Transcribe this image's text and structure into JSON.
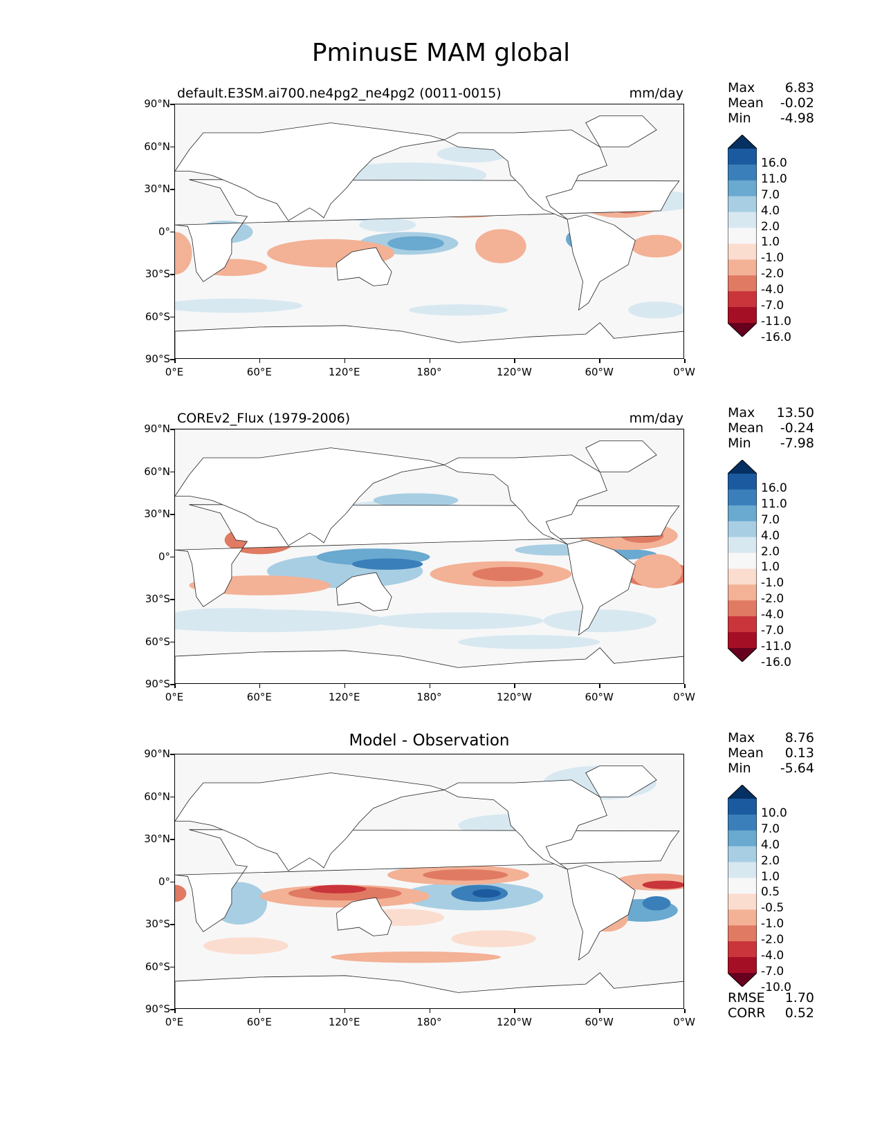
{
  "page": {
    "title": "PminusE MAM global"
  },
  "panels": [
    {
      "id": "model",
      "left_label": "default.E3SM.ai700.ne4pg2_ne4pg2 (0011-0015)",
      "center_label": "",
      "units": "mm/day",
      "stats": {
        "max": "6.83",
        "mean": "-0.02",
        "min": "-4.98"
      },
      "colorbar_levels": [
        "16.0",
        "11.0",
        "7.0",
        "4.0",
        "2.0",
        "1.0",
        "-1.0",
        "-2.0",
        "-4.0",
        "-7.0",
        "-11.0",
        "-16.0"
      ]
    },
    {
      "id": "obs",
      "left_label": "COREv2_Flux (1979-2006)",
      "center_label": "",
      "units": "mm/day",
      "stats": {
        "max": "13.50",
        "mean": "-0.24",
        "min": "-7.98"
      },
      "colorbar_levels": [
        "16.0",
        "11.0",
        "7.0",
        "4.0",
        "2.0",
        "1.0",
        "-1.0",
        "-2.0",
        "-4.0",
        "-7.0",
        "-11.0",
        "-16.0"
      ]
    },
    {
      "id": "diff",
      "left_label": "",
      "center_label": "Model - Observation",
      "units": "",
      "stats": {
        "max": "8.76",
        "mean": "0.13",
        "min": "-5.64"
      },
      "colorbar_levels": [
        "10.0",
        "7.0",
        "4.0",
        "2.0",
        "1.0",
        "0.5",
        "-0.5",
        "-1.0",
        "-2.0",
        "-4.0",
        "-7.0",
        "-10.0"
      ]
    }
  ],
  "stat_labels": {
    "max": "Max",
    "mean": "Mean",
    "min": "Min"
  },
  "metrics": {
    "rmse_label": "RMSE",
    "rmse": "1.70",
    "corr_label": "CORR",
    "corr": "0.52"
  },
  "axes": {
    "lat_ticks": [
      "90°N",
      "60°N",
      "30°N",
      "0°",
      "30°S",
      "60°S",
      "90°S"
    ],
    "lon_ticks": [
      "0°E",
      "60°E",
      "120°E",
      "180°",
      "120°W",
      "60°W",
      "0°W"
    ]
  },
  "colors": {
    "colormap": [
      "#67001f",
      "#a50f25",
      "#c9353b",
      "#e07a62",
      "#f3b196",
      "#fbddd0",
      "#f7f7f7",
      "#d8e8f1",
      "#a8cee3",
      "#6aa9d0",
      "#3a7fb9",
      "#1c5aa0",
      "#053061"
    ],
    "land": "#ffffff",
    "ocean_neutral": "#f7f7f7"
  }
}
